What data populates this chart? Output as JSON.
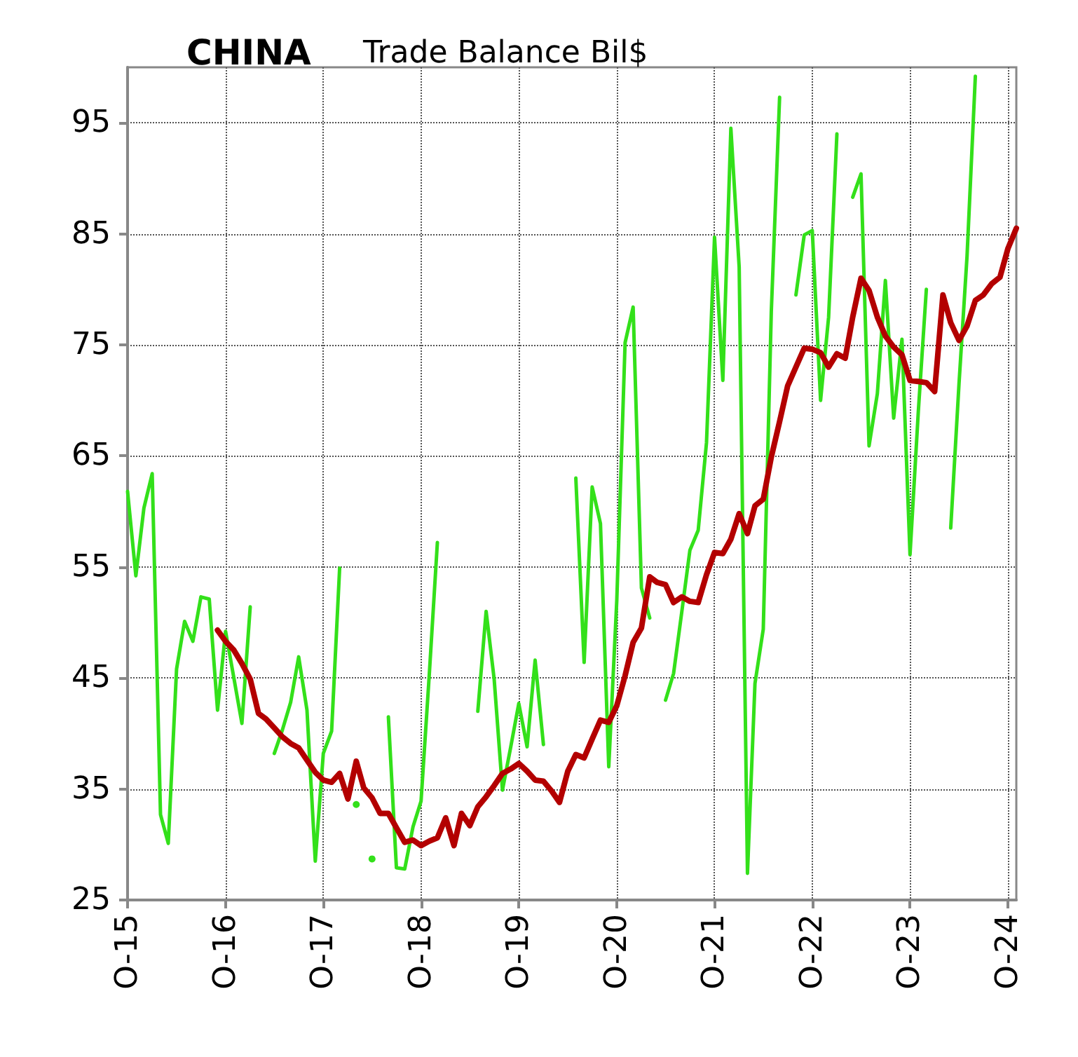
{
  "chart_data": {
    "type": "line",
    "title": "CHINA",
    "subtitle": "Trade Balance Bil$",
    "xlim": [
      "2015-10",
      "2024-11"
    ],
    "xticks": [
      {
        "value": "2015-10",
        "label": "O-15"
      },
      {
        "value": "2016-10",
        "label": "O-16"
      },
      {
        "value": "2017-10",
        "label": "O-17"
      },
      {
        "value": "2018-10",
        "label": "O-18"
      },
      {
        "value": "2019-10",
        "label": "O-19"
      },
      {
        "value": "2020-10",
        "label": "O-20"
      },
      {
        "value": "2021-10",
        "label": "O-21"
      },
      {
        "value": "2022-10",
        "label": "O-22"
      },
      {
        "value": "2023-10",
        "label": "O-23"
      },
      {
        "value": "2024-10",
        "label": "O-24"
      }
    ],
    "ylim": [
      25,
      100
    ],
    "yticks": [
      25,
      35,
      45,
      55,
      65,
      75,
      85,
      95
    ],
    "grid": true,
    "marker": "none",
    "line_style": "solid",
    "series": [
      {
        "color": "#33e01a",
        "x": [
          "2015-10",
          "2015-11",
          "2015-12",
          "2016-01",
          "2016-02",
          "2016-03",
          "2016-04",
          "2016-05",
          "2016-06",
          "2016-07",
          "2016-08",
          "2016-09",
          "2016-10",
          "2016-11",
          "2016-12",
          "2017-01",
          "2017-02",
          "2017-03",
          "2017-04",
          "2017-05",
          "2017-06",
          "2017-07",
          "2017-08",
          "2017-09",
          "2017-10",
          "2017-11",
          "2017-12",
          "2018-01",
          "2018-02",
          "2018-03",
          "2018-04",
          "2018-05",
          "2018-06",
          "2018-07",
          "2018-08",
          "2018-09",
          "2018-10",
          "2018-11",
          "2018-12",
          "2019-01",
          "2019-02",
          "2019-03",
          "2019-04",
          "2019-05",
          "2019-06",
          "2019-07",
          "2019-08",
          "2019-09",
          "2019-10",
          "2019-11",
          "2019-12",
          "2020-01",
          "2020-02",
          "2020-03",
          "2020-04",
          "2020-05",
          "2020-06",
          "2020-07",
          "2020-08",
          "2020-09",
          "2020-10",
          "2020-11",
          "2020-12",
          "2021-01",
          "2021-02",
          "2021-03",
          "2021-04",
          "2021-05",
          "2021-06",
          "2021-07",
          "2021-08",
          "2021-09",
          "2021-10",
          "2021-11",
          "2021-12",
          "2022-01",
          "2022-02",
          "2022-03",
          "2022-04",
          "2022-05",
          "2022-06",
          "2022-07",
          "2022-08",
          "2022-09",
          "2022-10",
          "2022-11",
          "2022-12",
          "2023-01",
          "2023-02",
          "2023-03",
          "2023-04",
          "2023-05",
          "2023-06",
          "2023-07",
          "2023-08",
          "2023-09",
          "2023-10",
          "2023-11",
          "2023-12",
          "2024-01",
          "2024-02",
          "2024-03",
          "2024-04",
          "2024-05",
          "2024-06"
        ],
        "values": [
          61.8,
          54.2,
          60.3,
          63.4,
          32.7,
          30.1,
          45.8,
          50.1,
          48.3,
          52.3,
          52.1,
          42.1,
          49.2,
          45.0,
          40.9,
          51.4,
          null,
          null,
          38.2,
          40.3,
          42.8,
          46.9,
          42.1,
          28.5,
          38.2,
          40.2,
          54.9,
          null,
          33.6,
          null,
          28.7,
          null,
          41.5,
          27.9,
          27.8,
          31.6,
          33.9,
          45.4,
          57.2,
          null,
          null,
          null,
          null,
          42.0,
          51.0,
          44.9,
          34.9,
          38.8,
          42.7,
          38.8,
          46.6,
          39.0,
          null,
          null,
          null,
          63.0,
          46.4,
          62.2,
          58.9,
          37.0,
          52,
          75.2,
          78.4,
          53.1,
          50.4,
          null,
          43.0,
          45.4,
          51,
          56.5,
          58.3,
          66.2,
          84.7,
          71.8,
          94.5,
          82.0,
          27.4,
          44.5,
          49.4,
          78.0,
          97.3,
          null,
          79.5,
          84.9,
          85.3,
          70.0,
          77.5,
          94.0,
          null,
          88.3,
          90.4,
          65.9,
          70.6,
          80.8,
          68.4,
          75.5,
          56.1,
          69,
          80,
          null,
          null,
          58.5,
          71.5,
          83,
          99.2
        ]
      },
      {
        "color": "#b30000",
        "x": [
          "2016-09",
          "2016-10",
          "2016-11",
          "2016-12",
          "2017-01",
          "2017-02",
          "2017-03",
          "2017-04",
          "2017-05",
          "2017-06",
          "2017-07",
          "2017-08",
          "2017-09",
          "2017-10",
          "2017-11",
          "2017-12",
          "2018-01",
          "2018-02",
          "2018-03",
          "2018-04",
          "2018-05",
          "2018-06",
          "2018-07",
          "2018-08",
          "2018-09",
          "2018-10",
          "2018-11",
          "2018-12",
          "2019-01",
          "2019-02",
          "2019-03",
          "2019-04",
          "2019-05",
          "2019-06",
          "2019-07",
          "2019-08",
          "2019-09",
          "2019-10",
          "2019-11",
          "2019-12",
          "2020-01",
          "2020-02",
          "2020-03",
          "2020-04",
          "2020-05",
          "2020-06",
          "2020-07",
          "2020-08",
          "2020-09",
          "2020-10",
          "2020-11",
          "2020-12",
          "2021-01",
          "2021-02",
          "2021-03",
          "2021-04",
          "2021-05",
          "2021-06",
          "2021-07",
          "2021-08",
          "2021-09",
          "2021-10",
          "2021-11",
          "2021-12",
          "2022-01",
          "2022-02",
          "2022-03",
          "2022-04",
          "2022-05",
          "2022-06",
          "2022-07",
          "2022-08",
          "2022-09",
          "2022-10",
          "2022-11",
          "2022-12",
          "2023-01",
          "2023-02",
          "2023-03",
          "2023-04",
          "2023-05",
          "2023-06",
          "2023-07",
          "2023-08",
          "2023-09",
          "2023-10",
          "2023-11",
          "2023-12",
          "2024-01",
          "2024-02",
          "2024-03",
          "2024-04",
          "2024-05",
          "2024-06",
          "2024-07",
          "2024-08",
          "2024-09",
          "2024-10",
          "2024-11"
        ],
        "values": [
          49.3,
          48.3,
          47.5,
          46.3,
          44.9,
          41.8,
          41.3,
          40.5,
          39.7,
          39.1,
          38.7,
          37.6,
          36.5,
          35.8,
          35.6,
          36.4,
          34.1,
          37.5,
          35.1,
          34.2,
          32.8,
          32.8,
          31.5,
          30.2,
          30.4,
          29.9,
          30.3,
          30.6,
          32.4,
          29.9,
          32.8,
          31.7,
          33.4,
          34.3,
          35.3,
          36.4,
          36.8,
          37.3,
          36.6,
          35.8,
          35.7,
          34.8,
          33.8,
          36.6,
          38.1,
          37.8,
          39.5,
          41.2,
          41.0,
          42.5,
          45.2,
          48.2,
          49.5,
          54.1,
          53.6,
          53.4,
          51.8,
          52.3,
          51.9,
          51.8,
          54.3,
          56.3,
          56.2,
          57.5,
          59.8,
          58.0,
          60.5,
          61.1,
          64.9,
          68.1,
          71.3,
          73.0,
          74.7,
          74.6,
          74.3,
          73.0,
          74.2,
          73.8,
          77.5,
          81.0,
          79.9,
          77.5,
          75.8,
          74.8,
          74.1,
          71.8,
          71.7,
          71.6,
          70.8,
          79.5,
          77.0,
          75.4,
          76.7,
          79.0,
          79.5,
          80.5,
          81.1,
          83.7,
          85.5
        ]
      }
    ]
  }
}
